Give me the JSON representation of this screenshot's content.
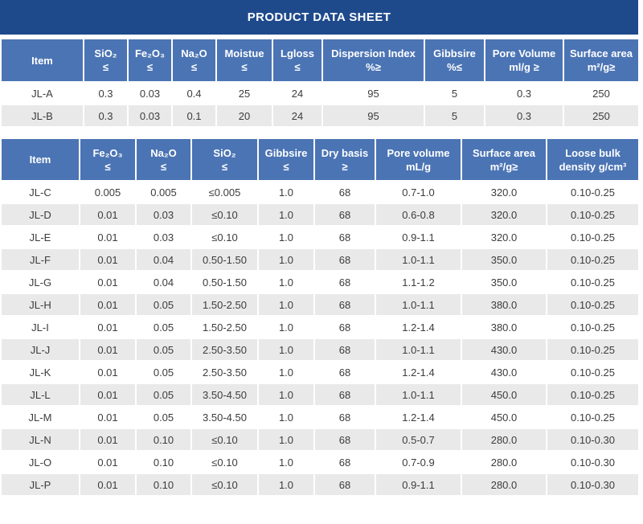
{
  "title": "PRODUCT DATA SHEET",
  "colors": {
    "title_bar": "#1e4a8c",
    "header_bg": "#4b74b4",
    "header_text": "#ffffff",
    "row_alt": "#e9e9e9",
    "cell_text": "#3c3c3c"
  },
  "table1": {
    "headers": [
      {
        "line1": "Item",
        "line2": ""
      },
      {
        "line1": "SiO₂",
        "line2": "≤"
      },
      {
        "line1": "Fe₂O₃",
        "line2": "≤"
      },
      {
        "line1": "Na₂O",
        "line2": "≤"
      },
      {
        "line1": "Moistue",
        "line2": "≤"
      },
      {
        "line1": "Lgloss",
        "line2": "≤"
      },
      {
        "line1": "Dispersion Index",
        "line2": "%≥"
      },
      {
        "line1": "Gibbsire",
        "line2": "%≤"
      },
      {
        "line1": "Pore Volume",
        "line2": "ml/g ≥"
      },
      {
        "line1": "Surface area",
        "line2": "m²/g≥"
      }
    ],
    "rows": [
      [
        "JL-A",
        "0.3",
        "0.03",
        "0.4",
        "25",
        "24",
        "95",
        "5",
        "0.3",
        "250"
      ],
      [
        "JL-B",
        "0.3",
        "0.03",
        "0.1",
        "20",
        "24",
        "95",
        "5",
        "0.3",
        "250"
      ]
    ]
  },
  "table2": {
    "headers": [
      {
        "line1": "Item",
        "line2": ""
      },
      {
        "line1": "Fe₂O₃",
        "line2": "≤"
      },
      {
        "line1": "Na₂O",
        "line2": "≤"
      },
      {
        "line1": "SiO₂",
        "line2": "≤"
      },
      {
        "line1": "Gibbsire",
        "line2": "≤"
      },
      {
        "line1": "Dry basis",
        "line2": "≥"
      },
      {
        "line1": "Pore volume",
        "line2": "mL/g"
      },
      {
        "line1": "Surface area",
        "line2": "m²/g≥"
      },
      {
        "line1": "Loose bulk",
        "line2": "density g/cm³"
      }
    ],
    "rows": [
      [
        "JL-C",
        "0.005",
        "0.005",
        "≤0.005",
        "1.0",
        "68",
        "0.7-1.0",
        "320.0",
        "0.10-0.25"
      ],
      [
        "JL-D",
        "0.01",
        "0.03",
        "≤0.10",
        "1.0",
        "68",
        "0.6-0.8",
        "320.0",
        "0.10-0.25"
      ],
      [
        "JL-E",
        "0.01",
        "0.03",
        "≤0.10",
        "1.0",
        "68",
        "0.9-1.1",
        "320.0",
        "0.10-0.25"
      ],
      [
        "JL-F",
        "0.01",
        "0.04",
        "0.50-1.50",
        "1.0",
        "68",
        "1.0-1.1",
        "350.0",
        "0.10-0.25"
      ],
      [
        "JL-G",
        "0.01",
        "0.04",
        "0.50-1.50",
        "1.0",
        "68",
        "1.1-1.2",
        "350.0",
        "0.10-0.25"
      ],
      [
        "JL-H",
        "0.01",
        "0.05",
        "1.50-2.50",
        "1.0",
        "68",
        "1.0-1.1",
        "380.0",
        "0.10-0.25"
      ],
      [
        "JL-I",
        "0.01",
        "0.05",
        "1.50-2.50",
        "1.0",
        "68",
        "1.2-1.4",
        "380.0",
        "0.10-0.25"
      ],
      [
        "JL-J",
        "0.01",
        "0.05",
        "2.50-3.50",
        "1.0",
        "68",
        "1.0-1.1",
        "430.0",
        "0.10-0.25"
      ],
      [
        "JL-K",
        "0.01",
        "0.05",
        "2.50-3.50",
        "1.0",
        "68",
        "1.2-1.4",
        "430.0",
        "0.10-0.25"
      ],
      [
        "JL-L",
        "0.01",
        "0.05",
        "3.50-4.50",
        "1.0",
        "68",
        "1.0-1.1",
        "450.0",
        "0.10-0.25"
      ],
      [
        "JL-M",
        "0.01",
        "0.05",
        "3.50-4.50",
        "1.0",
        "68",
        "1.2-1.4",
        "450.0",
        "0.10-0.25"
      ],
      [
        "JL-N",
        "0.01",
        "0.10",
        "≤0.10",
        "1.0",
        "68",
        "0.5-0.7",
        "280.0",
        "0.10-0.30"
      ],
      [
        "JL-O",
        "0.01",
        "0.10",
        "≤0.10",
        "1.0",
        "68",
        "0.7-0.9",
        "280.0",
        "0.10-0.30"
      ],
      [
        "JL-P",
        "0.01",
        "0.10",
        "≤0.10",
        "1.0",
        "68",
        "0.9-1.1",
        "280.0",
        "0.10-0.30"
      ]
    ]
  }
}
